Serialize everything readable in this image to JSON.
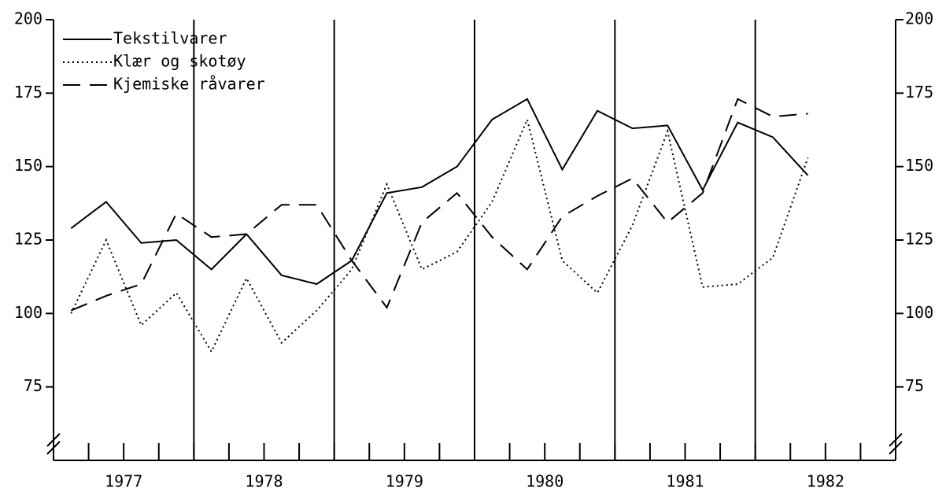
{
  "chart_data": {
    "type": "line",
    "x": [
      1977.125,
      1977.375,
      1977.625,
      1977.875,
      1978.125,
      1978.375,
      1978.625,
      1978.875,
      1979.125,
      1979.375,
      1979.625,
      1979.875,
      1980.125,
      1980.375,
      1980.625,
      1980.875,
      1981.125,
      1981.375,
      1981.625,
      1981.875,
      1982.125,
      1982.375
    ],
    "series": [
      {
        "name": "Tekstilvarer",
        "color": "#000000",
        "style": "solid",
        "values": [
          129,
          138,
          124,
          125,
          115,
          127,
          113,
          110,
          118,
          141,
          143,
          150,
          166,
          173,
          149,
          169,
          163,
          164,
          142,
          165,
          160,
          147
        ]
      },
      {
        "name": "Klær og skotøy",
        "color": "#000000",
        "style": "dotted",
        "values": [
          100,
          125,
          96,
          107,
          87,
          112,
          90,
          101,
          115,
          144,
          115,
          121,
          138,
          166,
          118,
          107,
          130,
          162,
          109,
          110,
          119,
          153
        ]
      },
      {
        "name": "Kjemiske råvarer",
        "color": "#000000",
        "style": "dashed",
        "values": [
          101,
          106,
          110,
          134,
          126,
          127,
          137,
          137,
          118,
          102,
          131,
          141,
          126,
          115,
          133,
          140,
          146,
          131,
          141,
          173,
          167,
          168
        ]
      }
    ],
    "xlim": [
      1977,
      1983
    ],
    "xticks": [
      {
        "value": 1977,
        "label": "1977"
      },
      {
        "value": 1978,
        "label": "1978"
      },
      {
        "value": 1979,
        "label": "1979"
      },
      {
        "value": 1980,
        "label": "1980"
      },
      {
        "value": 1981,
        "label": "1981"
      },
      {
        "value": 1982,
        "label": "1982"
      }
    ],
    "ylim": [
      50,
      200
    ],
    "yticks": [
      75,
      100,
      125,
      150,
      175,
      200
    ],
    "legend": "upper-left",
    "grid": true
  }
}
